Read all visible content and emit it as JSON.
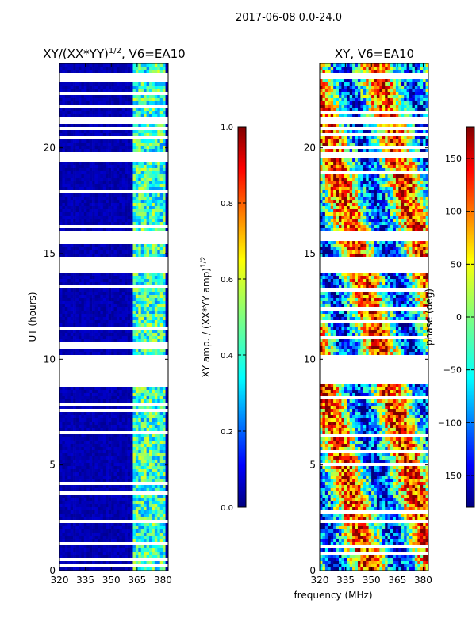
{
  "suptitle": "2017-06-08 0.0-24.0",
  "xlabel": "frequency (MHz)",
  "colors": {
    "jet": [
      "#00007f",
      "#0000ff",
      "#007fff",
      "#00ffff",
      "#7fff7f",
      "#ffff00",
      "#ff7f00",
      "#ff0000",
      "#7f0000"
    ],
    "flagged": "#ffffff"
  },
  "chart_data": [
    {
      "type": "heatmap",
      "title_main": "XY/(XX*YY)",
      "title_sup": "1/2",
      "title_tail": ", V6=EA10",
      "ylabel": "UT (hours)",
      "xlim": [
        320,
        383
      ],
      "ylim": [
        0,
        24
      ],
      "xticks": [
        320,
        335,
        350,
        365,
        380
      ],
      "yticks": [
        0,
        5,
        10,
        15,
        20
      ],
      "colorbar": {
        "label_main": "XY amp. / (XX*YY amp)",
        "label_sup": "1/2",
        "range": [
          0.0,
          1.0
        ],
        "ticks": [
          "0.0",
          "0.2",
          "0.4",
          "0.6",
          "0.8",
          "1.0"
        ]
      },
      "flagged_hours": [
        [
          8.9,
          10.2
        ],
        [
          14.1,
          14.8
        ],
        [
          15.6,
          16.0
        ],
        [
          21.1,
          21.4
        ],
        [
          23.3,
          23.5
        ]
      ],
      "description": "Low normalized amplitude (~0.05) across 320-362 MHz; ~0.3-0.5 in 363-380 MHz"
    },
    {
      "type": "heatmap",
      "title_main": "XY, V6=EA10",
      "ylabel": "",
      "xlim": [
        320,
        383
      ],
      "ylim": [
        0,
        24
      ],
      "xticks": [
        320,
        335,
        350,
        365,
        380
      ],
      "yticks": [
        0,
        5,
        10,
        15,
        20
      ],
      "colorbar": {
        "label_main": "phase (deg)",
        "range": [
          -180,
          180
        ],
        "ticks": [
          "−150",
          "−100",
          "−50",
          "0",
          "50",
          "100",
          "150"
        ]
      },
      "flagged_hours": [
        [
          8.9,
          10.2
        ],
        [
          14.1,
          14.8
        ],
        [
          15.6,
          16.0
        ],
        [
          21.1,
          21.4
        ],
        [
          23.3,
          23.5
        ]
      ],
      "description": "Phase varies widely across band and time"
    }
  ]
}
